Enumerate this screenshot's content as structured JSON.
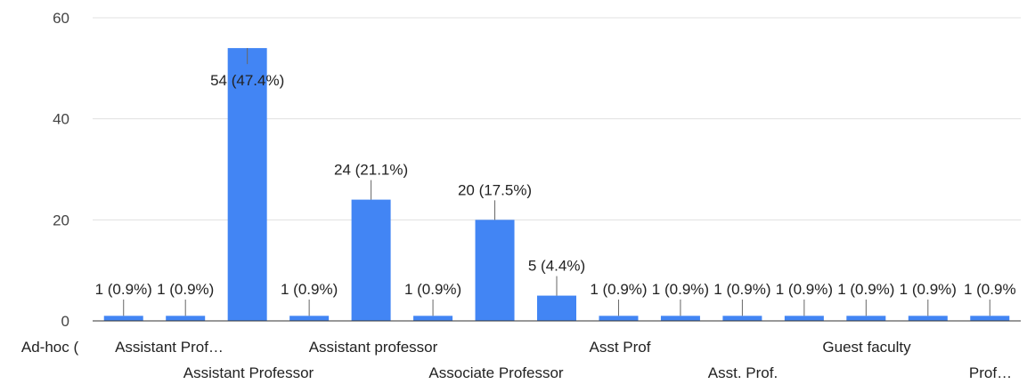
{
  "chart_data": {
    "type": "bar",
    "categories": [
      "Ad-hoc (",
      "Assistant Prof…",
      "Assistant Professor",
      "Assistant professor",
      "Asst Prof",
      "Associate Professor",
      "Asst Prof",
      "Asst. Prof.",
      "Guest faculty",
      "Prof…",
      "",
      "",
      "",
      "",
      ""
    ],
    "visible_category_labels": [
      "Ad-hoc (",
      "Assistant Prof…",
      "Assistant Professor",
      "Assistant professor",
      "Associate Professor",
      "Asst Prof",
      "Asst. Prof.",
      "Guest faculty",
      "Prof…"
    ],
    "values": [
      1,
      1,
      54,
      1,
      24,
      1,
      20,
      5,
      1,
      1,
      1,
      1,
      1,
      1,
      1
    ],
    "data_labels": [
      "1 (0.9%)",
      "1 (0.9%)",
      "54 (47.4%)",
      "1 (0.9%)",
      "24 (21.1%)",
      "1 (0.9%)",
      "20 (17.5%)",
      "5 (4.4%)",
      "1 (0.9%)",
      "1 (0.9%)",
      "1 (0.9%)",
      "1 (0.9%)",
      "1 (0.9%)",
      "1 (0.9%)",
      "1 (0.9%"
    ],
    "yticks": [
      0,
      20,
      40,
      60
    ],
    "ylim": [
      0,
      60
    ],
    "grid": true,
    "title": "",
    "xlabel": "",
    "ylabel": "",
    "bar_color": "#4285f4"
  }
}
